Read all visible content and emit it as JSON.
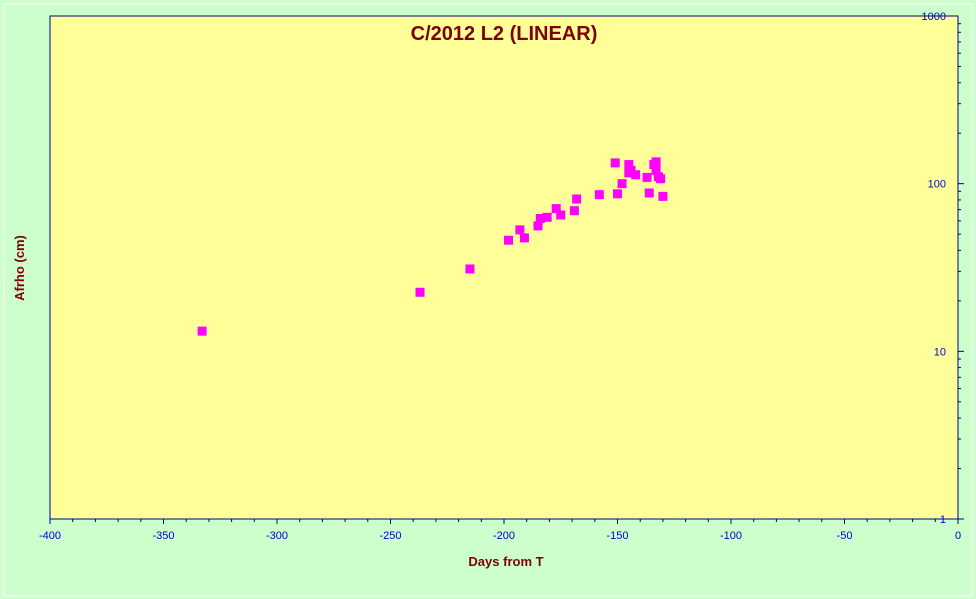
{
  "chart_data": {
    "type": "scatter",
    "title": "C/2012 L2 (LINEAR)",
    "xlabel": "Days from  T",
    "ylabel": "Afrho (cm)",
    "xlim": [
      -400,
      0
    ],
    "ylim": [
      1,
      1000
    ],
    "yscale": "log",
    "x_ticks": [
      -400,
      -350,
      -300,
      -250,
      -200,
      -150,
      -100,
      -50,
      0
    ],
    "y_ticks": [
      1,
      10,
      100,
      1000
    ],
    "grid": false,
    "legend": "none",
    "colors": {
      "plot_bg": "#ffff99",
      "page_bg": "#ccffcc",
      "marker": "#ff00ff",
      "title": "#800000",
      "tick_labels": "#0000cc",
      "axis": "#000080"
    },
    "series": [
      {
        "marker": "square",
        "x": [
          -333,
          -237,
          -215,
          -198,
          -193,
          -191,
          -185,
          -184,
          -181,
          -177,
          -175,
          -169,
          -168,
          -158,
          -151,
          -150,
          -148,
          -145,
          -145,
          -144,
          -142,
          -137,
          -136,
          -134,
          -133,
          -133,
          -132,
          -131,
          -130
        ],
        "y": [
          13.2,
          22.5,
          31,
          46,
          53,
          47.5,
          56,
          62,
          63,
          71,
          65,
          69,
          81,
          86,
          133,
          87,
          100,
          130,
          116,
          120,
          113,
          109,
          88,
          130,
          135,
          120,
          110,
          107,
          84
        ]
      }
    ]
  }
}
